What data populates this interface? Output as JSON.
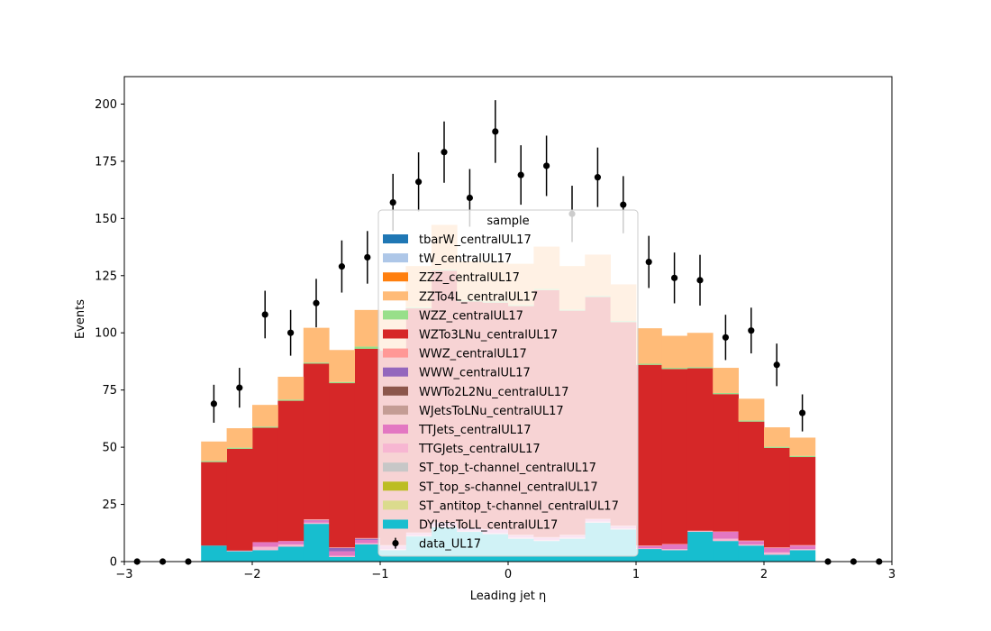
{
  "chart_data": {
    "type": "bar",
    "stacked": true,
    "histogram": true,
    "xlabel": "Leading jet  η",
    "ylabel": "Events",
    "xlim": [
      -3,
      3
    ],
    "ylim": [
      0,
      212
    ],
    "xticks": [
      -3,
      -2,
      -1,
      0,
      1,
      2,
      3
    ],
    "xtick_labels": [
      "−3",
      "−2",
      "−1",
      "0",
      "1",
      "2",
      "3"
    ],
    "yticks": [
      0,
      25,
      50,
      75,
      100,
      125,
      150,
      175,
      200
    ],
    "bin_edges": [
      -3.0,
      -2.8,
      -2.6,
      -2.4,
      -2.2,
      -2.0,
      -1.8,
      -1.6,
      -1.4,
      -1.2,
      -1.0,
      -0.8,
      -0.6,
      -0.4,
      -0.2,
      0.0,
      0.2,
      0.4,
      0.6,
      0.8,
      1.0,
      1.2,
      1.4,
      1.6,
      1.8,
      2.0,
      2.2,
      2.4,
      2.6,
      2.8,
      3.0
    ],
    "bin_centers": [
      -2.9,
      -2.7,
      -2.5,
      -2.3,
      -2.1,
      -1.9,
      -1.7,
      -1.5,
      -1.3,
      -1.1,
      -0.9,
      -0.7,
      -0.5,
      -0.3,
      -0.1,
      0.1,
      0.3,
      0.5,
      0.7,
      0.9,
      1.1,
      1.3,
      1.5,
      1.7,
      1.9,
      2.1,
      2.3,
      2.5,
      2.7,
      2.9
    ],
    "legend_title": "sample",
    "legend_location": "center",
    "series": [
      {
        "name": "DYJetsToLL_centralUL17",
        "color": "#17becf",
        "values": [
          0,
          0,
          0,
          7,
          4.5,
          5,
          6.5,
          16.5,
          2,
          7.5,
          5,
          11,
          15,
          13,
          12,
          10,
          9,
          10,
          17,
          14,
          5.5,
          5,
          13,
          9,
          7,
          3,
          5,
          0,
          0,
          0
        ]
      },
      {
        "name": "ST_antitop_t-channel_centralUL17",
        "color": "#dbdb8d",
        "values": [
          0,
          0,
          0,
          0,
          0,
          0,
          0,
          0,
          0,
          0,
          0,
          0,
          0,
          0,
          0,
          0,
          0,
          0,
          0,
          0,
          0,
          0,
          0,
          0,
          0,
          0,
          0,
          0,
          0,
          0
        ]
      },
      {
        "name": "ST_top_s-channel_centralUL17",
        "color": "#bcbd22",
        "values": [
          0,
          0,
          0,
          0,
          0,
          0,
          0,
          0,
          0,
          0,
          0,
          0,
          0,
          0,
          0,
          0,
          0,
          0,
          0,
          0,
          0,
          0,
          0,
          0,
          0,
          0,
          0,
          0,
          0,
          0
        ]
      },
      {
        "name": "ST_top_t-channel_centralUL17",
        "color": "#c7c7c7",
        "values": [
          0,
          0,
          0,
          0,
          0,
          0,
          0,
          0,
          0,
          0,
          0,
          0,
          0,
          0,
          0,
          0,
          0,
          0,
          0,
          0,
          0,
          0,
          0,
          0,
          0,
          0,
          0,
          0,
          0,
          0
        ]
      },
      {
        "name": "TTGJets_centralUL17",
        "color": "#f7b6d2",
        "values": [
          0,
          0,
          0,
          0,
          0.3,
          1.5,
          1,
          0.5,
          0.5,
          0.5,
          0.5,
          0.5,
          0.5,
          0.5,
          0.5,
          0.5,
          0.5,
          0.5,
          0.5,
          0.5,
          0.3,
          0.5,
          0.3,
          1,
          0.5,
          1,
          0.5,
          0,
          0,
          0
        ]
      },
      {
        "name": "TTJets_centralUL17",
        "color": "#e377c2",
        "values": [
          0,
          0,
          0,
          0,
          0,
          2,
          1.5,
          1,
          2,
          1.5,
          1.5,
          1,
          1.5,
          1,
          1.5,
          1,
          1,
          1,
          1,
          1,
          1,
          2,
          0,
          3,
          1.5,
          2,
          1.5,
          0,
          0,
          0
        ]
      },
      {
        "name": "WJetsToLNu_centralUL17",
        "color": "#c49c94",
        "values": [
          0,
          0,
          0,
          0,
          0,
          0,
          0,
          0,
          0,
          0,
          0,
          0,
          0,
          0,
          0,
          0,
          0,
          0,
          0,
          0,
          0,
          0,
          0,
          0,
          0,
          0,
          0,
          0,
          0,
          0
        ]
      },
      {
        "name": "WWTo2L2Nu_centralUL17",
        "color": "#8c564b",
        "values": [
          0,
          0,
          0,
          0,
          0,
          0,
          0,
          0,
          0,
          0,
          0,
          0,
          0,
          0,
          0,
          0,
          0,
          0,
          0,
          0,
          0,
          0,
          0,
          0,
          0,
          0,
          0,
          0,
          0,
          0
        ]
      },
      {
        "name": "WWW_centralUL17",
        "color": "#9467bd",
        "values": [
          0,
          0,
          0,
          0,
          0,
          0,
          0,
          0.2,
          1.5,
          0.5,
          0,
          0,
          0,
          0,
          0,
          0,
          0,
          0,
          0,
          0,
          0,
          0,
          0,
          0,
          0,
          0,
          0,
          0,
          0,
          0
        ]
      },
      {
        "name": "WWZ_centralUL17",
        "color": "#ff9896",
        "values": [
          0,
          0,
          0,
          0,
          0,
          0,
          0,
          0.3,
          0.2,
          0.3,
          0.2,
          0.2,
          0.2,
          0.2,
          0.2,
          0.2,
          0.2,
          0.2,
          0.2,
          0.2,
          0.2,
          0.2,
          0.2,
          0.2,
          0.2,
          0.2,
          0.2,
          0,
          0,
          0
        ]
      },
      {
        "name": "WZTo3LNu_centralUL17",
        "color": "#d62728",
        "values": [
          0,
          0,
          0,
          36.5,
          44.5,
          50,
          61.3,
          68,
          71.8,
          82.7,
          85,
          98,
          110,
          99,
          99,
          100,
          108,
          98,
          97,
          89,
          79,
          76.5,
          71,
          60,
          52,
          43.5,
          38.5,
          0,
          0,
          0
        ]
      },
      {
        "name": "WZZ_centralUL17",
        "color": "#98df8a",
        "values": [
          0,
          0,
          0,
          0.5,
          0.5,
          0.5,
          0.5,
          0.5,
          0.5,
          1,
          0.5,
          0.5,
          0.5,
          0.5,
          0.5,
          0.5,
          0.5,
          0.5,
          0.5,
          0.5,
          0.5,
          0.5,
          0.5,
          0.5,
          0.5,
          0.5,
          0.5,
          0,
          0,
          0
        ]
      },
      {
        "name": "ZZTo4L_centralUL17",
        "color": "#ffbb78",
        "values": [
          0,
          0,
          0,
          8.5,
          8.5,
          9.5,
          10,
          15.2,
          14,
          16,
          17,
          18,
          19.5,
          17,
          17,
          18,
          18.5,
          19,
          18,
          16,
          15.5,
          14,
          15,
          11,
          9.5,
          8.5,
          8,
          0,
          0,
          0
        ]
      },
      {
        "name": "ZZZ_centralUL17",
        "color": "#ff7f0e",
        "values": [
          0,
          0,
          0,
          0,
          0,
          0,
          0,
          0,
          0,
          0,
          0,
          0,
          0,
          0,
          0,
          0,
          0,
          0,
          0,
          0,
          0,
          0,
          0,
          0,
          0,
          0,
          0,
          0,
          0,
          0
        ]
      },
      {
        "name": "tW_centralUL17",
        "color": "#aec7e8",
        "values": [
          0,
          0,
          0,
          0,
          0,
          0,
          0,
          0,
          0,
          0,
          0,
          0,
          0,
          0,
          0,
          0,
          0,
          0,
          0,
          0,
          0,
          0,
          0,
          0,
          0,
          0,
          0,
          0,
          0,
          0
        ]
      },
      {
        "name": "tbarW_centralUL17",
        "color": "#1f77b4",
        "values": [
          0,
          0,
          0,
          0,
          0,
          0,
          0,
          0,
          0,
          0,
          0,
          0,
          0,
          0,
          0,
          0,
          0,
          0,
          0,
          0,
          0,
          0,
          0,
          0,
          0,
          0,
          0,
          0,
          0,
          0
        ]
      }
    ],
    "data": {
      "name": "data_UL17",
      "color": "#000000",
      "values": [
        0,
        0,
        0,
        69,
        76,
        108,
        100,
        113,
        129,
        133,
        157,
        166,
        179,
        159,
        188,
        169,
        173,
        152,
        168,
        156,
        131,
        124,
        123,
        98,
        101,
        86,
        65,
        0,
        0,
        0
      ],
      "errors": [
        0,
        0,
        0,
        8.3,
        8.7,
        10.4,
        10,
        10.6,
        11.4,
        11.5,
        12.5,
        12.9,
        13.4,
        12.6,
        13.7,
        13,
        13.2,
        12.3,
        13,
        12.5,
        11.4,
        11.1,
        11.1,
        9.9,
        10,
        9.3,
        8.1,
        0,
        0,
        0
      ]
    },
    "legend_order": [
      "tbarW_centralUL17",
      "tW_centralUL17",
      "ZZZ_centralUL17",
      "ZZTo4L_centralUL17",
      "WZZ_centralUL17",
      "WZTo3LNu_centralUL17",
      "WWZ_centralUL17",
      "WWW_centralUL17",
      "WWTo2L2Nu_centralUL17",
      "WJetsToLNu_centralUL17",
      "TTJets_centralUL17",
      "TTGJets_centralUL17",
      "ST_top_t-channel_centralUL17",
      "ST_top_s-channel_centralUL17",
      "ST_antitop_t-channel_centralUL17",
      "DYJetsToLL_centralUL17",
      "data_UL17"
    ]
  }
}
